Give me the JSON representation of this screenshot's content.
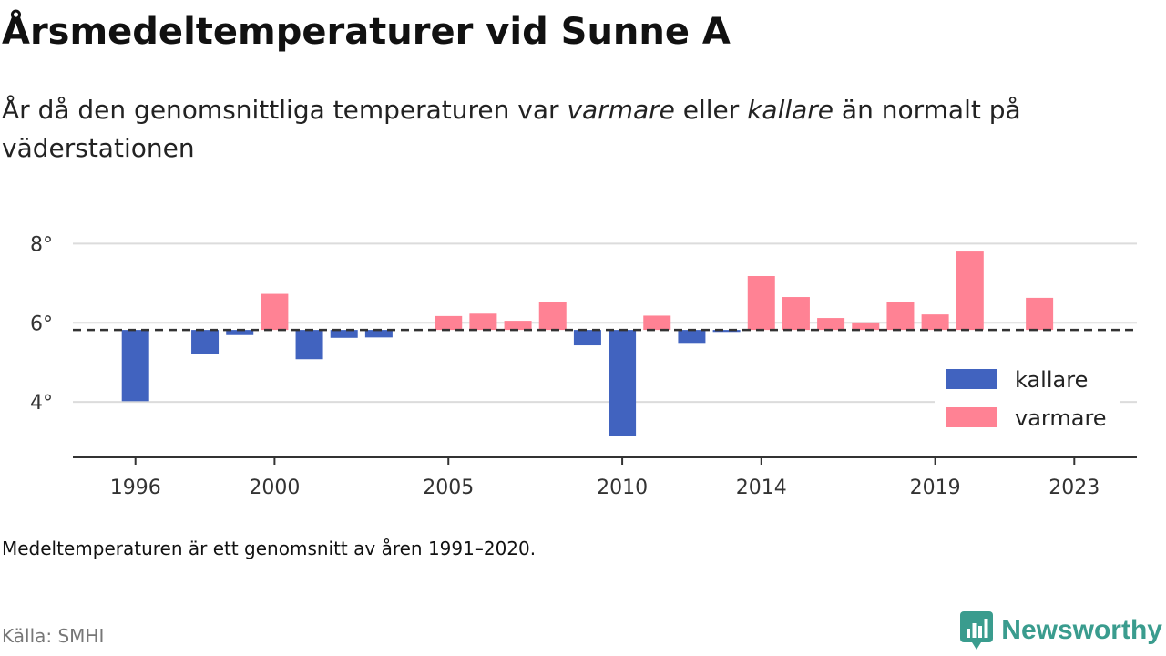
{
  "header": {
    "title": "Årsmedeltemperaturer vid Sunne A",
    "subtitle_pre": "År då den genomsnittliga temperaturen var ",
    "subtitle_em1": "varmare",
    "subtitle_mid": " eller ",
    "subtitle_em2": "kallare",
    "subtitle_post": " än normalt på väderstationen"
  },
  "footer": {
    "note": "Medeltemperaturen är ett genomsnitt av åren 1991–2020.",
    "source": "Källa: SMHI",
    "brand": "Newsworthy"
  },
  "colors": {
    "kallare": "#4163bf",
    "varmare": "#ff8294",
    "brand": "#3a9c8e"
  },
  "chart_data": {
    "type": "bar",
    "baseline": 5.82,
    "x": [
      1996,
      1998,
      1999,
      2000,
      2001,
      2002,
      2003,
      2005,
      2006,
      2007,
      2008,
      2009,
      2010,
      2011,
      2012,
      2013,
      2014,
      2015,
      2016,
      2017,
      2018,
      2019,
      2020,
      2022
    ],
    "values": [
      4.02,
      5.22,
      5.69,
      6.73,
      5.08,
      5.62,
      5.63,
      6.17,
      6.23,
      6.05,
      6.53,
      5.43,
      3.15,
      6.18,
      5.47,
      5.77,
      7.18,
      6.65,
      6.12,
      6.01,
      6.53,
      6.21,
      7.8,
      6.63
    ],
    "x_ticks": [
      1996,
      2000,
      2005,
      2010,
      2014,
      2019,
      2023
    ],
    "y_ticks": [
      4,
      6,
      8
    ],
    "y_tick_suffix": "°",
    "ylim": [
      2.6,
      8.4
    ],
    "xlim": [
      1994.2,
      2024.8
    ],
    "grid": true,
    "legend": {
      "position": "right",
      "entries": [
        {
          "key": "kallare",
          "label": "kallare"
        },
        {
          "key": "varmare",
          "label": "varmare"
        }
      ]
    }
  }
}
